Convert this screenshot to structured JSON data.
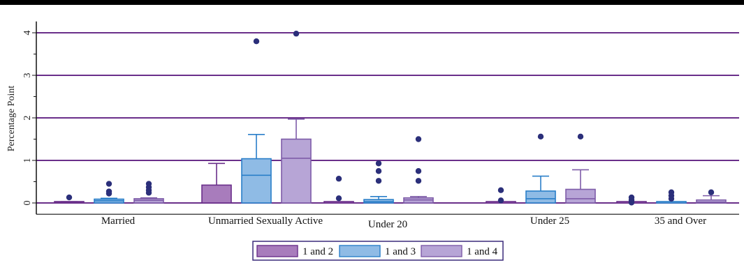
{
  "chart_data": {
    "type": "box",
    "title": "",
    "xlabel": "",
    "ylabel": "Percentage Point",
    "ylim": [
      -0.2,
      4.2
    ],
    "yticks": [
      0,
      1,
      2,
      3,
      4
    ],
    "grid": "horizontal",
    "legend_position": "bottom-center",
    "categories": [
      "Married",
      "Unmarried Sexually Active",
      "Under 20",
      "Under 25",
      "35 and Over"
    ],
    "series": [
      {
        "name": "1 and 2",
        "fill": "#a87cbc",
        "stroke": "#6a2f8a",
        "boxes": [
          {
            "q1": 0,
            "median": 0.01,
            "q3": 0.02,
            "wlo": 0,
            "whi": 0.03,
            "outliers": [
              0.13
            ]
          },
          {
            "q1": 0,
            "median": 0,
            "q3": 0.42,
            "wlo": 0,
            "whi": 0.93,
            "outliers": []
          },
          {
            "q1": 0,
            "median": 0,
            "q3": 0,
            "wlo": 0,
            "whi": 0,
            "outliers": [
              0.57,
              0.11
            ]
          },
          {
            "q1": 0,
            "median": 0,
            "q3": 0,
            "wlo": 0,
            "whi": 0,
            "outliers": [
              0.3,
              0.06
            ]
          },
          {
            "q1": 0,
            "median": 0,
            "q3": 0,
            "wlo": 0,
            "whi": 0,
            "outliers": [
              0.13,
              0.07,
              0.01
            ]
          }
        ]
      },
      {
        "name": "1 and 3",
        "fill": "#8fbbe5",
        "stroke": "#2a7fc9",
        "boxes": [
          {
            "q1": 0,
            "median": 0.05,
            "q3": 0.09,
            "wlo": 0,
            "whi": 0.11,
            "outliers": [
              0.45,
              0.27,
              0.22
            ]
          },
          {
            "q1": 0,
            "median": 0.65,
            "q3": 1.04,
            "wlo": 0,
            "whi": 1.61,
            "outliers": [
              3.8
            ]
          },
          {
            "q1": 0,
            "median": 0.03,
            "q3": 0.08,
            "wlo": 0,
            "whi": 0.15,
            "outliers": [
              0.93,
              0.75,
              0.52
            ]
          },
          {
            "q1": 0,
            "median": 0.1,
            "q3": 0.28,
            "wlo": 0,
            "whi": 0.63,
            "outliers": [
              1.56
            ]
          },
          {
            "q1": 0,
            "median": 0,
            "q3": 0.01,
            "wlo": 0,
            "whi": 0.02,
            "outliers": [
              0.25,
              0.17,
              0.1
            ]
          }
        ]
      },
      {
        "name": "1 and 4",
        "fill": "#b7a5d6",
        "stroke": "#7e5ca8",
        "boxes": [
          {
            "q1": 0,
            "median": 0.06,
            "q3": 0.1,
            "wlo": 0,
            "whi": 0.12,
            "outliers": [
              0.45,
              0.37,
              0.3,
              0.24
            ]
          },
          {
            "q1": 0,
            "median": 1.05,
            "q3": 1.5,
            "wlo": 0,
            "whi": 1.97,
            "outliers": [
              3.98
            ]
          },
          {
            "q1": 0,
            "median": 0.07,
            "q3": 0.12,
            "wlo": 0,
            "whi": 0.15,
            "outliers": [
              1.5,
              0.75,
              0.52
            ]
          },
          {
            "q1": 0,
            "median": 0.1,
            "q3": 0.32,
            "wlo": 0,
            "whi": 0.78,
            "outliers": [
              1.56
            ]
          },
          {
            "q1": 0,
            "median": 0.02,
            "q3": 0.07,
            "wlo": 0,
            "whi": 0.17,
            "outliers": [
              0.25
            ]
          }
        ]
      }
    ],
    "colors": {
      "grid": "#6a2f8a",
      "axis": "#111111",
      "outlier": "#2b2f7a",
      "legend_border": "#3a2a7a"
    }
  }
}
